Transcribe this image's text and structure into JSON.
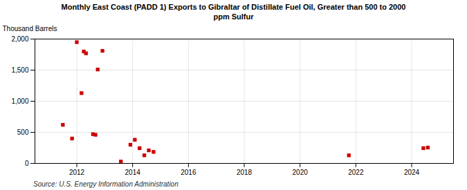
{
  "chart_data": {
    "type": "scatter",
    "title": "Monthly East Coast (PADD 1) Exports to Gibraltar of Distillate Fuel Oil, Greater than 500 to 2000\nppm Sulfur",
    "ylabel": "Thousand Barrels",
    "source": "Source: U.S. Energy Information Administration",
    "color": "#cc0000",
    "marker": "square",
    "grid": true,
    "xlim": [
      2010.5,
      2025.5
    ],
    "ylim": [
      0,
      2000
    ],
    "xticks": [
      2012,
      2014,
      2016,
      2018,
      2020,
      2022,
      2024
    ],
    "yticks": [
      0,
      500,
      {
        "value": 1000,
        "label": "1,000"
      },
      {
        "value": 1500,
        "label": "1,500"
      },
      {
        "value": 2000,
        "label": "2,000"
      }
    ],
    "x": [
      2011.5,
      2011.83,
      2012.0,
      2012.17,
      2012.25,
      2012.33,
      2012.58,
      2012.67,
      2012.75,
      2012.92,
      2013.58,
      2013.92,
      2014.08,
      2014.25,
      2014.42,
      2014.58,
      2014.75,
      2021.75,
      2024.42,
      2024.58
    ],
    "values": [
      620,
      400,
      1950,
      1130,
      1800,
      1770,
      470,
      460,
      1510,
      1810,
      30,
      300,
      380,
      245,
      130,
      210,
      185,
      130,
      245,
      255
    ]
  }
}
